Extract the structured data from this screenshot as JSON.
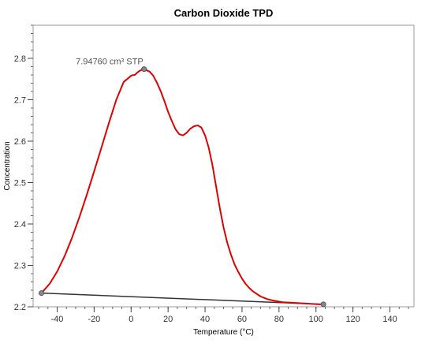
{
  "chart_data": {
    "type": "line",
    "title": "Carbon Dioxide TPD",
    "xlabel": "Temperature (°C)",
    "ylabel": "Concentration",
    "xlim": [
      -53,
      153
    ],
    "ylim": [
      2.2,
      2.88
    ],
    "x_ticks": [
      -40,
      -20,
      0,
      20,
      40,
      60,
      80,
      100,
      120,
      140
    ],
    "y_ticks": [
      2.2,
      2.3,
      2.4,
      2.5,
      2.6,
      2.7,
      2.8
    ],
    "x_minor_step": 5,
    "y_minor_step": 0.02,
    "grid": false,
    "legend": "none",
    "colors": {
      "signal": "#e00000",
      "baseline": "#333333",
      "marker": "#555555"
    },
    "series": [
      {
        "x": [
          -48.5,
          -44,
          -40,
          -36,
          -32,
          -28,
          -24,
          -20,
          -16,
          -12,
          -8,
          -4,
          0,
          0.5,
          2,
          4,
          6,
          7,
          8,
          10,
          12,
          14,
          16,
          18,
          20,
          22,
          24,
          26,
          28,
          30,
          32,
          34,
          36,
          38,
          40,
          42,
          44,
          46,
          48,
          50,
          52,
          54,
          56,
          58,
          60,
          62,
          64,
          66,
          68,
          70,
          74,
          78,
          82,
          86,
          90,
          94,
          98,
          102,
          104
        ],
        "y": [
          2.233,
          2.256,
          2.285,
          2.322,
          2.366,
          2.416,
          2.47,
          2.527,
          2.585,
          2.644,
          2.7,
          2.743,
          2.758,
          2.759,
          2.76,
          2.768,
          2.773,
          2.774,
          2.772,
          2.768,
          2.758,
          2.741,
          2.721,
          2.697,
          2.671,
          2.649,
          2.629,
          2.617,
          2.614,
          2.62,
          2.63,
          2.636,
          2.638,
          2.633,
          2.614,
          2.584,
          2.542,
          2.49,
          2.438,
          2.392,
          2.355,
          2.326,
          2.302,
          2.284,
          2.268,
          2.255,
          2.245,
          2.237,
          2.231,
          2.225,
          2.218,
          2.214,
          2.211,
          2.21,
          2.209,
          2.208,
          2.207,
          2.206,
          2.206
        ]
      },
      {
        "x": [
          -48.5,
          104
        ],
        "y": [
          2.233,
          2.206
        ]
      }
    ],
    "markers": [
      {
        "x": -48.5,
        "y": 2.233
      },
      {
        "x": 7,
        "y": 2.774
      },
      {
        "x": 104,
        "y": 2.206
      }
    ],
    "annotation": {
      "text": "7.94760 cm³ STP",
      "x": 7,
      "y": 2.774
    }
  }
}
